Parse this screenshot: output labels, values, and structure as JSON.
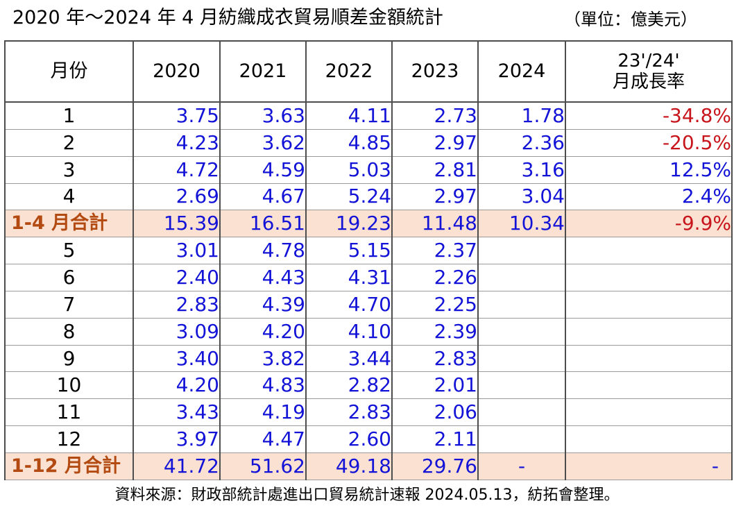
{
  "title": "2020 年～2024 年 4 月紡織成衣貿易順差金額統計",
  "unit": "（單位：億美元）",
  "headers": {
    "month": "月份",
    "y2020": "2020",
    "y2021": "2021",
    "y2022": "2022",
    "y2023": "2023",
    "y2024": "2024",
    "growth_line1": "23'/24'",
    "growth_line2": "月成長率"
  },
  "rows": [
    {
      "month": "1",
      "v2020": "3.75",
      "v2021": "3.63",
      "v2022": "4.11",
      "v2023": "2.73",
      "v2024": "1.78",
      "growth": "-34.8%"
    },
    {
      "month": "2",
      "v2020": "4.23",
      "v2021": "3.62",
      "v2022": "4.85",
      "v2023": "2.97",
      "v2024": "2.36",
      "growth": "-20.5%"
    },
    {
      "month": "3",
      "v2020": "4.72",
      "v2021": "4.59",
      "v2022": "5.03",
      "v2023": "2.81",
      "v2024": "3.16",
      "growth": "12.5%"
    },
    {
      "month": "4",
      "v2020": "2.69",
      "v2021": "4.67",
      "v2022": "5.24",
      "v2023": "2.97",
      "v2024": "3.04",
      "growth": "2.4%"
    },
    {
      "month": "1-4 月合計",
      "v2020": "15.39",
      "v2021": "16.51",
      "v2022": "19.23",
      "v2023": "11.48",
      "v2024": "10.34",
      "growth": "-9.9%"
    },
    {
      "month": "5",
      "v2020": "3.01",
      "v2021": "4.78",
      "v2022": "5.15",
      "v2023": "2.37",
      "v2024": "",
      "growth": ""
    },
    {
      "month": "6",
      "v2020": "2.40",
      "v2021": "4.43",
      "v2022": "4.31",
      "v2023": "2.26",
      "v2024": "",
      "growth": ""
    },
    {
      "month": "7",
      "v2020": "2.83",
      "v2021": "4.39",
      "v2022": "4.70",
      "v2023": "2.25",
      "v2024": "",
      "growth": ""
    },
    {
      "month": "8",
      "v2020": "3.09",
      "v2021": "4.20",
      "v2022": "4.10",
      "v2023": "2.39",
      "v2024": "",
      "growth": ""
    },
    {
      "month": "9",
      "v2020": "3.40",
      "v2021": "3.82",
      "v2022": "3.44",
      "v2023": "2.83",
      "v2024": "",
      "growth": ""
    },
    {
      "month": "10",
      "v2020": "4.20",
      "v2021": "4.83",
      "v2022": "2.82",
      "v2023": "2.01",
      "v2024": "",
      "growth": ""
    },
    {
      "month": "11",
      "v2020": "3.43",
      "v2021": "4.19",
      "v2022": "2.83",
      "v2023": "2.06",
      "v2024": "",
      "growth": ""
    },
    {
      "month": "12",
      "v2020": "3.97",
      "v2021": "4.47",
      "v2022": "2.60",
      "v2023": "2.11",
      "v2024": "",
      "growth": ""
    },
    {
      "month": "1-12 月合計",
      "v2020": "41.72",
      "v2021": "51.62",
      "v2022": "49.18",
      "v2023": "29.76",
      "v2024": "-",
      "growth": "-"
    }
  ],
  "source": "資料來源：財政部統計處進出口貿易統計速報 2024.05.13，紡拓會整理。",
  "colors": {
    "value": "#1313d8",
    "negative": "#c8151b",
    "total_bg": "#fbe1d2",
    "total_label": "#b24a12"
  }
}
